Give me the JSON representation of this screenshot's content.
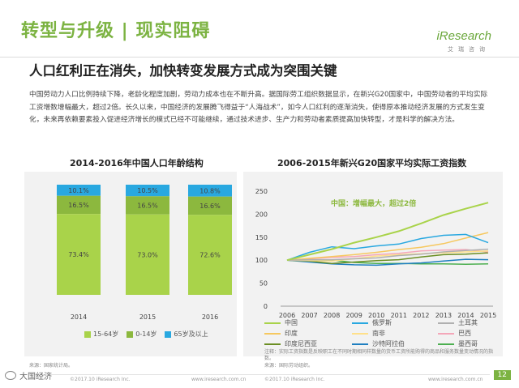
{
  "header": {
    "title": "转型与升级 | 现实阻碍",
    "brand": "iResearch",
    "brand_sub": "艾瑞咨询",
    "subtitle": "人口红利正在消失，加快转变发展方式成为突围关键",
    "body": "中国劳动力人口比例持续下降，老龄化程度加剧，劳动力成本也在不断升高。据国际劳工组织数据显示，在新兴G20国家中，中国劳动者的平均实际工资增数增幅最大，超过2倍。长久以来，中国经济的发展腾飞得益于“人海战术”，如今人口红利的逐渐消失，使得原本推动经济发展的方式发生变化，未来再依赖要素投入促进经济增长的模式已经不可能继续，通过技术进步、生产力和劳动者素质提高加快转型，才是科学的解决方法。"
  },
  "colors": {
    "accent": "#7cb342",
    "c15_64": "#a9d34a",
    "c0_14": "#8cb83e",
    "c65": "#29a8e0",
    "panel": "#f2f2f2"
  },
  "chart_data": [
    {
      "type": "bar",
      "stacked": true,
      "title": "2014-2016年中国人口年龄结构",
      "categories": [
        "2014",
        "2015",
        "2016"
      ],
      "series": [
        {
          "name": "15-64岁",
          "values": [
            73.4,
            73.0,
            72.6
          ],
          "labels": [
            "73.4%",
            "73.0%",
            "72.6%"
          ],
          "color": "#a9d34a"
        },
        {
          "name": "0-14岁",
          "values": [
            16.5,
            16.5,
            16.6
          ],
          "labels": [
            "16.5%",
            "16.5%",
            "16.6%"
          ],
          "color": "#8cb83e"
        },
        {
          "name": "65岁及以上",
          "values": [
            10.1,
            10.5,
            10.8
          ],
          "labels": [
            "10.1%",
            "10.5%",
            "10.8%"
          ],
          "color": "#29a8e0"
        }
      ],
      "ylim": [
        0,
        100
      ]
    },
    {
      "type": "line",
      "title": "2006-2015年新兴G20国家平均实际工资指数",
      "x": [
        "2006",
        "2007",
        "2008",
        "2009",
        "2010",
        "2011",
        "2012",
        "2013",
        "2014",
        "2015"
      ],
      "yticks": [
        0,
        50,
        100,
        150,
        200,
        250
      ],
      "ylim": [
        0,
        250
      ],
      "annotation": "中国：增幅最大，超过2倍",
      "series": [
        {
          "name": "中国",
          "color": "#a9d34a",
          "values": [
            100,
            112,
            124,
            138,
            150,
            163,
            180,
            198,
            212,
            225
          ]
        },
        {
          "name": "俄罗斯",
          "color": "#29a8e0",
          "values": [
            100,
            117,
            129,
            125,
            131,
            135,
            147,
            154,
            156,
            138
          ]
        },
        {
          "name": "土耳其",
          "color": "#b0b0b0",
          "values": [
            100,
            101,
            101,
            103,
            105,
            110,
            113,
            118,
            121,
            124
          ]
        },
        {
          "name": "印度",
          "color": "#f6c85f",
          "values": [
            100,
            104,
            108,
            112,
            117,
            123,
            128,
            136,
            148,
            160
          ]
        },
        {
          "name": "南非",
          "color": "#ffe08a",
          "values": [
            100,
            99,
            98,
            103,
            109,
            112,
            114,
            116,
            118,
            120
          ]
        },
        {
          "name": "巴西",
          "color": "#f4a7b9",
          "values": [
            100,
            103,
            106,
            108,
            112,
            115,
            120,
            122,
            123,
            118
          ]
        },
        {
          "name": "印度尼西亚",
          "color": "#6b8e23",
          "values": [
            100,
            98,
            93,
            96,
            99,
            101,
            107,
            112,
            113,
            116
          ]
        },
        {
          "name": "沙特阿拉伯",
          "color": "#1f7fc0",
          "values": [
            100,
            96,
            92,
            90,
            89,
            92,
            94,
            98,
            102,
            101
          ]
        },
        {
          "name": "墨西哥",
          "color": "#4caf50",
          "values": [
            100,
            101,
            100,
            95,
            93,
            93,
            92,
            92,
            91,
            92
          ]
        }
      ]
    }
  ],
  "notes": {
    "left_source": "来源：国家统计局。",
    "right_note": "注释：实际工资指数是反映职工在不同时期相同样数量的货币工资所能购得的商品和服务数量变动情况的指数。",
    "right_source": "来源：国际劳动组织。",
    "footer_left_company": "©2017.10 iResearch Inc.",
    "footer_left_url": "www.iresearch.com.cn",
    "footer_right_company": "©2017.10 iResearch Inc.",
    "footer_right_url": "www.iresearch.com.cn",
    "page_number": "12",
    "wechat_label": "大国经济"
  }
}
